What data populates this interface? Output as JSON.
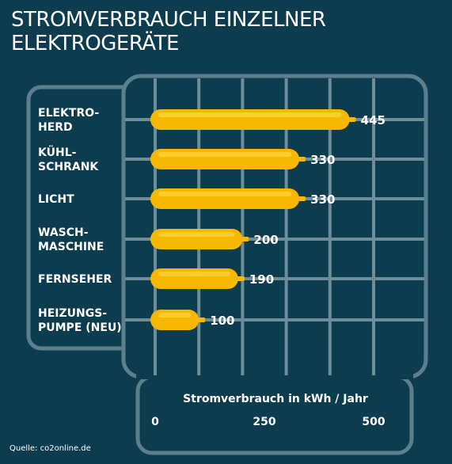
{
  "title_line1": "STROMVERBRAUCH EINZELNER",
  "title_line2": "ELEKTROGERÄTE",
  "source": "Quelle: co2online.de",
  "colors": {
    "background": "#0d3c4f",
    "frame": "#5c7f8d",
    "grid": "#6d8d99",
    "bar": "#f6b800",
    "bar_highlight": "#ffd23a",
    "text": "#ffffff"
  },
  "chart_data": {
    "type": "bar",
    "orientation": "horizontal",
    "categories": [
      [
        "ELEKTRO-",
        "HERD"
      ],
      [
        "KÜHL-",
        "SCHRANK"
      ],
      [
        "LICHT"
      ],
      [
        "WASCH-",
        "MASCHINE"
      ],
      [
        "FERNSEHER"
      ],
      [
        "HEIZUNGS-",
        "PUMPE (NEU)"
      ]
    ],
    "values": [
      445,
      330,
      330,
      200,
      190,
      100
    ],
    "data_labels": [
      "445",
      "330",
      "330",
      "200",
      "190",
      "100"
    ],
    "xlabel": "Stromverbrauch in kWh / Jahr",
    "xticks": [
      "0",
      "250",
      "500"
    ],
    "xlim": [
      0,
      500
    ],
    "grid": true,
    "legend": "none"
  }
}
